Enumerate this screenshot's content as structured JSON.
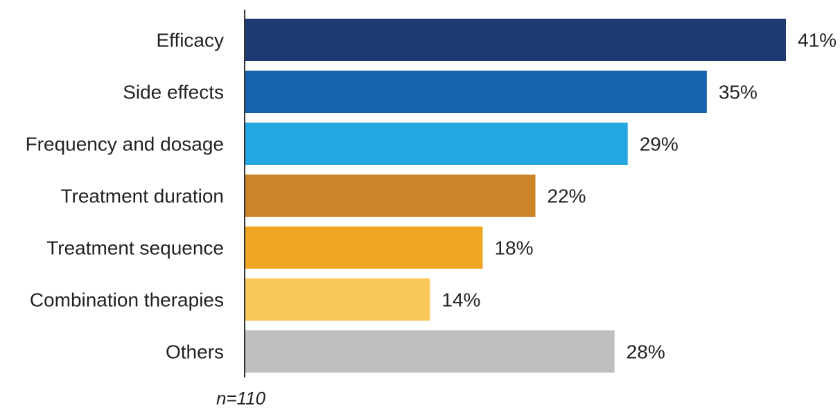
{
  "chart_data": {
    "type": "bar",
    "orientation": "horizontal",
    "categories": [
      "Efficacy",
      "Side effects",
      "Frequency and dosage",
      "Treatment duration",
      "Treatment sequence",
      "Combination therapies",
      "Others"
    ],
    "values": [
      41,
      35,
      29,
      22,
      18,
      14,
      28
    ],
    "value_labels": [
      "41%",
      "35%",
      "29%",
      "22%",
      "18%",
      "14%",
      "28%"
    ],
    "colors": [
      "#1f3a73",
      "#1664ae",
      "#24a7e0",
      "#cc8428",
      "#efa622",
      "#fbc85b",
      "#bfbfbf"
    ],
    "xlim": [
      0,
      41
    ],
    "grid": false,
    "legend": "none",
    "note": "n=110"
  }
}
